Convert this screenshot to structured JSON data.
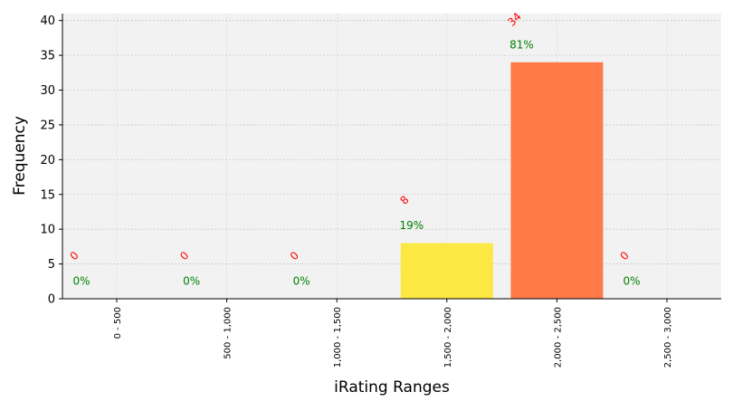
{
  "chart_data": {
    "type": "bar",
    "categories": [
      "0 - 500",
      "500 - 1,000",
      "1,000 - 1,500",
      "1,500 - 2,000",
      "2,000 - 2,500",
      "2,500 - 3,000"
    ],
    "values": [
      0,
      0,
      0,
      8,
      34,
      0
    ],
    "count_labels": [
      "0",
      "0",
      "0",
      "8",
      "34",
      "0"
    ],
    "percent_labels": [
      "0%",
      "0%",
      "0%",
      "19%",
      "81%",
      "0%"
    ],
    "bar_colors": [
      "#fee843",
      "#fee843",
      "#fee843",
      "#fce843",
      "#ff7a47",
      "#ff7a47"
    ],
    "count_label_color": "#ff0000",
    "percent_label_color": "#008000",
    "plot_background": "#f2f2f2",
    "xlabel": "iRating Ranges",
    "ylabel": "Frequency",
    "yticks": [
      0,
      5,
      10,
      15,
      20,
      25,
      30,
      35,
      40
    ],
    "ylim": [
      0,
      41
    ],
    "grid": true
  }
}
